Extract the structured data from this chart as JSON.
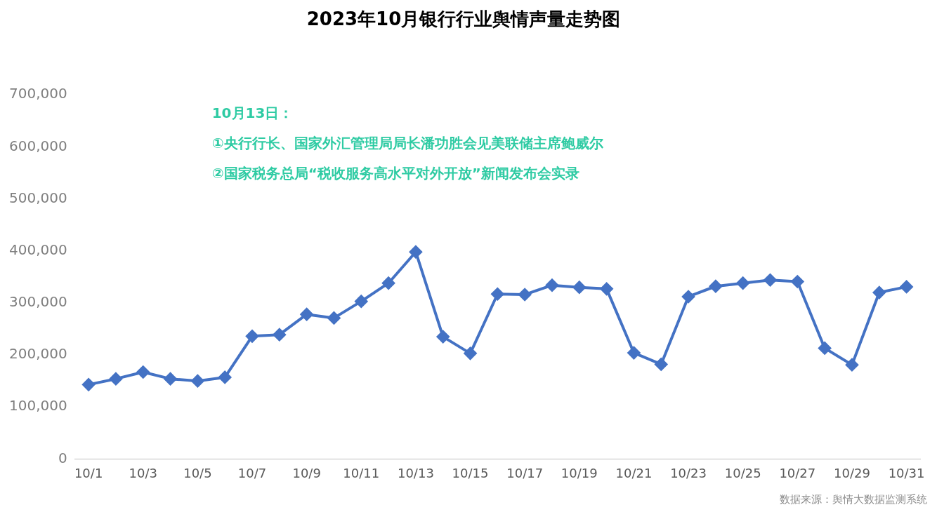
{
  "chart_data": {
    "type": "line",
    "title": "2023年10月银行行业舆情声量走势图",
    "categories": [
      "10/1",
      null,
      "10/3",
      null,
      "10/5",
      null,
      "10/7",
      null,
      "10/9",
      null,
      "10/11",
      null,
      "10/13",
      null,
      "10/15",
      null,
      "10/17",
      null,
      "10/19",
      null,
      "10/21",
      null,
      "10/23",
      null,
      "10/25",
      null,
      "10/27",
      null,
      "10/29",
      null,
      "10/31"
    ],
    "series": [
      {
        "color": "#4472c4",
        "values": [
          143000,
          154000,
          167000,
          154000,
          150000,
          157000,
          236000,
          239000,
          278000,
          271000,
          303000,
          338000,
          398000,
          235000,
          203000,
          317000,
          316000,
          334000,
          330000,
          327000,
          204000,
          182000,
          312000,
          332000,
          338000,
          344000,
          341000,
          213000,
          181000,
          320000,
          331000
        ]
      }
    ],
    "ylim": [
      0,
      700000
    ],
    "yticks": [
      0,
      {
        "value": 100000,
        "label": "100,000"
      },
      {
        "value": 200000,
        "label": "200,000"
      },
      {
        "value": 300000,
        "label": "300,000"
      },
      {
        "value": 400000,
        "label": "400,000"
      },
      {
        "value": 500000,
        "label": "500,000"
      },
      {
        "value": 600000,
        "label": "600,000"
      },
      {
        "value": 700000,
        "label": "700,000"
      }
    ],
    "grid": false,
    "legend": false,
    "marker": "diamond",
    "line_style": "solid",
    "annotations": [
      "10月13日：",
      "①央行行长、国家外汇管理局局长潘功胜会见美联储主席鲍威尔",
      "②国家税务总局“税收服务高水平对外开放”新闻发布会实录",
      "数据来源：舆情大数据监测系统"
    ]
  }
}
